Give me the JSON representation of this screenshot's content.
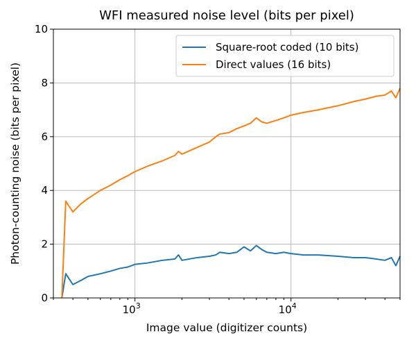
{
  "chart_data": {
    "type": "line",
    "title": "WFI measured noise level (bits per pixel)",
    "xlabel": "Image value (digitizer counts)",
    "ylabel": "Photon-counting noise (bits per pixel)",
    "xscale": "log",
    "xlim": [
      300,
      50000
    ],
    "ylim": [
      0,
      10
    ],
    "grid": true,
    "legend_position": "top-right",
    "y_ticks": [
      0,
      2,
      4,
      6,
      8,
      10
    ],
    "y_tick_labels": [
      "0",
      "2",
      "4",
      "6",
      "8",
      "10"
    ],
    "x_major_ticks": [
      1000,
      10000
    ],
    "x_tick_labels": [
      {
        "base": "10",
        "exp": "3"
      },
      {
        "base": "10",
        "exp": "4"
      }
    ],
    "series": [
      {
        "name": "Square-root coded (10 bits)",
        "color": "#1f77b4",
        "x": [
          340,
          360,
          400,
          450,
          500,
          600,
          700,
          800,
          900,
          1000,
          1200,
          1500,
          1800,
          1900,
          2000,
          2500,
          3000,
          3300,
          3500,
          4000,
          4500,
          5000,
          5500,
          6000,
          6500,
          7000,
          8000,
          9000,
          10000,
          12000,
          15000,
          20000,
          25000,
          30000,
          35000,
          40000,
          44000,
          47000,
          50000
        ],
        "y": [
          0.0,
          0.9,
          0.5,
          0.65,
          0.8,
          0.9,
          1.0,
          1.1,
          1.15,
          1.25,
          1.3,
          1.4,
          1.45,
          1.6,
          1.4,
          1.5,
          1.55,
          1.6,
          1.7,
          1.65,
          1.7,
          1.9,
          1.75,
          1.95,
          1.8,
          1.7,
          1.65,
          1.7,
          1.65,
          1.6,
          1.6,
          1.55,
          1.5,
          1.5,
          1.45,
          1.4,
          1.5,
          1.2,
          1.55
        ]
      },
      {
        "name": "Direct values (16 bits)",
        "color": "#ff7f0e",
        "x": [
          340,
          360,
          400,
          450,
          500,
          600,
          700,
          800,
          900,
          1000,
          1200,
          1500,
          1800,
          1900,
          2000,
          2500,
          3000,
          3300,
          3500,
          4000,
          4500,
          5000,
          5500,
          6000,
          6500,
          7000,
          8000,
          9000,
          10000,
          12000,
          15000,
          20000,
          25000,
          30000,
          35000,
          40000,
          44000,
          47000,
          50000
        ],
        "y": [
          0.0,
          3.6,
          3.2,
          3.5,
          3.7,
          4.0,
          4.2,
          4.4,
          4.55,
          4.7,
          4.9,
          5.1,
          5.3,
          5.45,
          5.35,
          5.6,
          5.8,
          6.0,
          6.1,
          6.15,
          6.3,
          6.4,
          6.5,
          6.7,
          6.55,
          6.5,
          6.6,
          6.7,
          6.8,
          6.9,
          7.0,
          7.15,
          7.3,
          7.4,
          7.5,
          7.55,
          7.7,
          7.45,
          7.8
        ]
      }
    ]
  }
}
